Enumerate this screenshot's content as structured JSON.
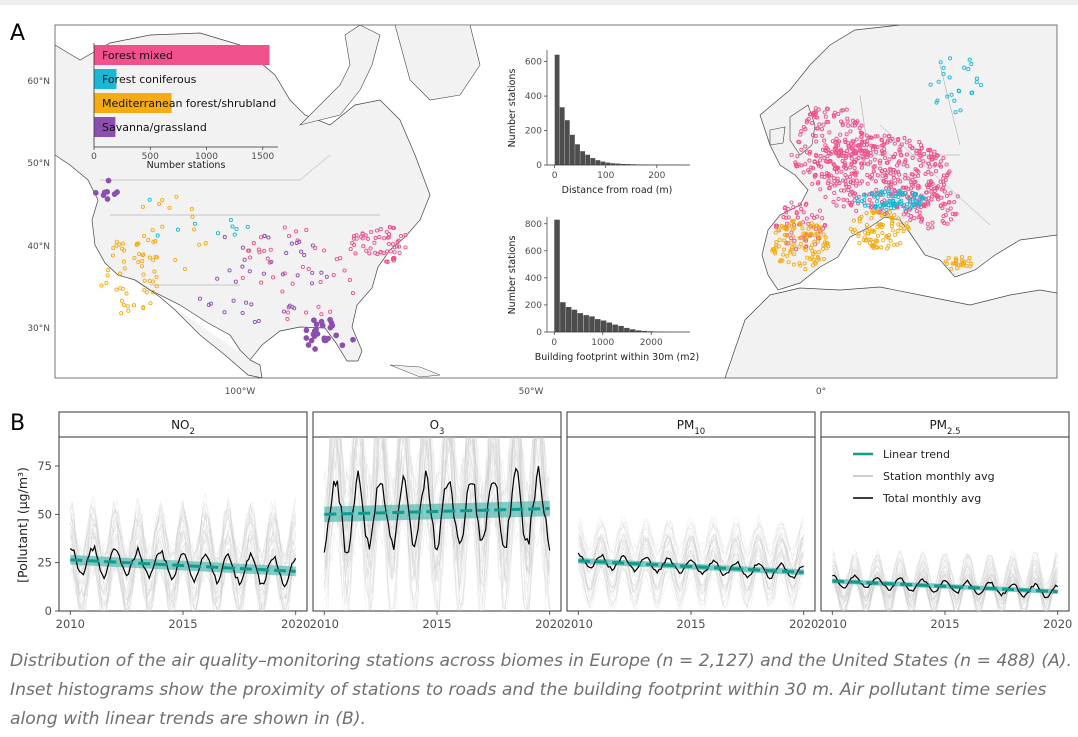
{
  "panel_labels": {
    "a": "A",
    "b": "B"
  },
  "caption": "Distribution of the air quality–monitoring stations across biomes in Europe (n = 2,127) and the United States (n = 488) (A). Inset histograms show the proximity of stations to roads and the building footprint within 30 m. Air pollutant time series along with linear trends are shown in (B).",
  "colors": {
    "forest_mixed": "#f0508c",
    "forest_coniferous": "#1ab8d6",
    "mediterranean": "#f5ab12",
    "savanna": "#8c4fb0",
    "trend": "#119a8e",
    "trend_band": "#5cbcb4",
    "station_line": "#bdbdbd",
    "total_line": "#000000",
    "hist_bar": "#4d4d4d",
    "land": "#f2f2f2",
    "border": "#555555",
    "strip_bg": "#ffffff"
  },
  "map": {
    "lat_ticks": [
      "60°N",
      "50°N",
      "40°N",
      "30°N"
    ],
    "lon_ticks": [
      "100°W",
      "50°W",
      "0°"
    ]
  },
  "chart_data": [
    {
      "type": "bar",
      "id": "biome_counts",
      "orientation": "horizontal",
      "categories": [
        "Forest mixed",
        "Forest coniferous",
        "Mediterranean forest/shrubland",
        "Savanna/grassland"
      ],
      "values": [
        1560,
        200,
        690,
        190
      ],
      "xlabel": "Number stations",
      "xticks": [
        "0",
        "500",
        "1000",
        "1500"
      ],
      "xlim": [
        0,
        1600
      ]
    },
    {
      "type": "bar",
      "id": "distance_from_road",
      "xlabel": "Distance from road (m)",
      "ylabel": "Number stations",
      "xticks": [
        "0",
        "100",
        "200"
      ],
      "yticks": [
        "0",
        "200",
        "400",
        "600"
      ],
      "xlim": [
        -15,
        265
      ],
      "ylim": [
        0,
        650
      ],
      "bin_width": 10,
      "bins_start": 0,
      "values": [
        640,
        335,
        260,
        175,
        120,
        80,
        60,
        40,
        28,
        20,
        14,
        10,
        8,
        6,
        5,
        4,
        3,
        3,
        2,
        2,
        2,
        1,
        1,
        1,
        1
      ]
    },
    {
      "type": "bar",
      "id": "building_footprint",
      "xlabel": "Building footprint within 30m (m2)",
      "ylabel": "Number stations",
      "xticks": [
        "0",
        "1000",
        "2000"
      ],
      "yticks": [
        "0",
        "200",
        "400",
        "600",
        "800"
      ],
      "xlim": [
        -150,
        2800
      ],
      "ylim": [
        0,
        850
      ],
      "bin_width": 120,
      "bins_start": 0,
      "values": [
        830,
        220,
        185,
        165,
        140,
        125,
        115,
        95,
        85,
        70,
        55,
        45,
        30,
        20,
        12,
        8,
        5,
        3,
        2,
        1
      ]
    },
    {
      "type": "line",
      "id": "pollutant_timeseries",
      "ylabel": "[Pollutant] (μg/m³)",
      "xticks": [
        "2010",
        "2015",
        "2020"
      ],
      "yticks": [
        "0",
        "25",
        "50",
        "75"
      ],
      "xlim": [
        2009.5,
        2020.5
      ],
      "ylim": [
        0,
        90
      ],
      "legend": [
        "Linear trend",
        "Station monthly avg",
        "Total monthly avg"
      ],
      "legend_position": "inside-top-right (PM2.5 facet)",
      "facets": [
        {
          "name": "NO",
          "sub": "2",
          "mean": 24,
          "amp": 7,
          "phase": 0.0,
          "trend_start": 26.5,
          "trend_end": 20.5,
          "band": 2.5
        },
        {
          "name": "O",
          "sub": "3",
          "mean": 51,
          "amp": 18,
          "phase": 3.14,
          "trend_start": 50,
          "trend_end": 53,
          "band": 4
        },
        {
          "name": "PM",
          "sub": "10",
          "mean": 23,
          "amp": 3.5,
          "phase": 0.0,
          "trend_start": 26,
          "trend_end": 20,
          "band": 1.5
        },
        {
          "name": "PM",
          "sub": "2.5",
          "mean": 13,
          "amp": 3,
          "phase": 0.0,
          "trend_start": 15.5,
          "trend_end": 10,
          "band": 1.2
        }
      ]
    }
  ]
}
